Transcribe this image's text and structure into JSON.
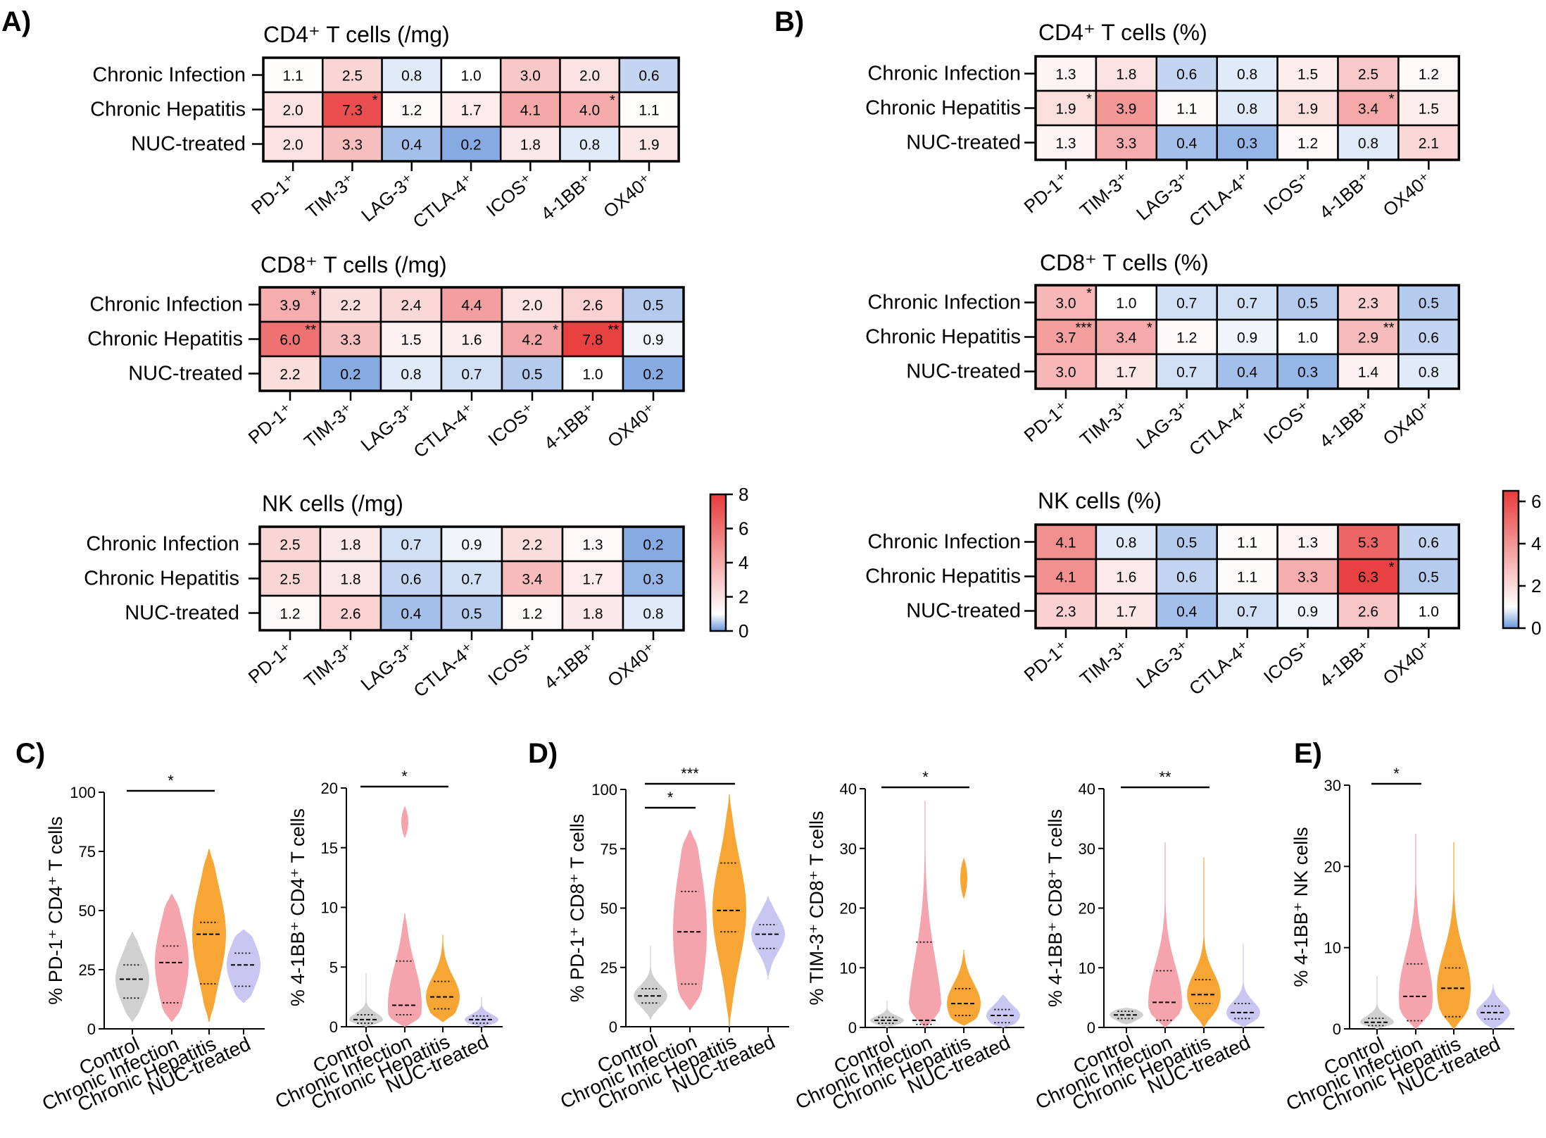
{
  "panel_letters": [
    "A)",
    "B)",
    "C)",
    "D)",
    "E)"
  ],
  "chart_data": [
    {
      "type": "heatmap",
      "panel": "A",
      "title": "CD4⁺ T cells (/mg)",
      "rows": [
        "Chronic Infection",
        "Chronic Hepatitis",
        "NUC-treated"
      ],
      "columns": [
        "PD-1⁺",
        "TIM-3⁺",
        "LAG-3⁺",
        "CTLA-4⁺",
        "ICOS⁺",
        "4-1BB⁺",
        "OX40⁺"
      ],
      "values": [
        [
          1.1,
          2.5,
          0.8,
          1.0,
          3.0,
          2.0,
          0.6
        ],
        [
          2.0,
          7.3,
          1.2,
          1.7,
          4.1,
          4.0,
          1.1
        ],
        [
          2.0,
          3.3,
          0.4,
          0.2,
          1.8,
          0.8,
          1.9
        ]
      ],
      "significance": [
        [
          "",
          "",
          "",
          "",
          "",
          "",
          ""
        ],
        [
          "",
          "*",
          "",
          "",
          "",
          "*",
          ""
        ],
        [
          "",
          "",
          "",
          "",
          "",
          "",
          ""
        ]
      ],
      "color_range": [
        0,
        8
      ]
    },
    {
      "type": "heatmap",
      "panel": "A",
      "title": "CD8⁺ T cells (/mg)",
      "rows": [
        "Chronic Infection",
        "Chronic Hepatitis",
        "NUC-treated"
      ],
      "columns": [
        "PD-1⁺",
        "TIM-3⁺",
        "LAG-3⁺",
        "CTLA-4⁺",
        "ICOS⁺",
        "4-1BB⁺",
        "OX40⁺"
      ],
      "values": [
        [
          3.9,
          2.2,
          2.4,
          4.4,
          2.0,
          2.6,
          0.5
        ],
        [
          6.0,
          3.3,
          1.5,
          1.6,
          4.2,
          7.8,
          0.9
        ],
        [
          2.2,
          0.2,
          0.8,
          0.7,
          0.5,
          1.0,
          0.2
        ]
      ],
      "significance": [
        [
          "*",
          "",
          "",
          "",
          "",
          "",
          ""
        ],
        [
          "**",
          "",
          "",
          "",
          "*",
          "**",
          ""
        ],
        [
          "",
          "",
          "",
          "",
          "",
          "",
          ""
        ]
      ],
      "color_range": [
        0,
        8
      ]
    },
    {
      "type": "heatmap",
      "panel": "A",
      "title": "NK cells (/mg)",
      "rows": [
        "Chronic Infection",
        "Chronic Hepatitis",
        "NUC-treated"
      ],
      "columns": [
        "PD-1⁺",
        "TIM-3⁺",
        "LAG-3⁺",
        "CTLA-4⁺",
        "ICOS⁺",
        "4-1BB⁺",
        "OX40⁺"
      ],
      "values": [
        [
          2.5,
          1.8,
          0.7,
          0.9,
          2.2,
          1.3,
          0.2
        ],
        [
          2.5,
          1.8,
          0.6,
          0.7,
          3.4,
          1.7,
          0.3
        ],
        [
          1.2,
          2.6,
          0.4,
          0.5,
          1.2,
          1.8,
          0.8
        ]
      ],
      "significance": [
        [
          "",
          "",
          "",
          "",
          "",
          "",
          ""
        ],
        [
          "",
          "",
          "",
          "",
          "",
          "",
          ""
        ],
        [
          "",
          "",
          "",
          "",
          "",
          "",
          ""
        ]
      ],
      "color_range": [
        0,
        8
      ],
      "colorbar_ticks": [
        "8",
        "6",
        "4",
        "2",
        "0"
      ]
    },
    {
      "type": "heatmap",
      "panel": "B",
      "title": "CD4⁺ T cells (%)",
      "rows": [
        "Chronic Infection",
        "Chronic Hepatitis",
        "NUC-treated"
      ],
      "columns": [
        "PD-1⁺",
        "TIM-3⁺",
        "LAG-3⁺",
        "CTLA-4⁺",
        "ICOS⁺",
        "4-1BB⁺",
        "OX40⁺"
      ],
      "values": [
        [
          1.3,
          1.8,
          0.6,
          0.8,
          1.5,
          2.5,
          1.2
        ],
        [
          1.9,
          3.9,
          1.1,
          0.8,
          1.9,
          3.4,
          1.5
        ],
        [
          1.3,
          3.3,
          0.4,
          0.3,
          1.2,
          0.8,
          2.1
        ]
      ],
      "significance": [
        [
          "",
          "",
          "",
          "",
          "",
          "",
          ""
        ],
        [
          "*",
          "",
          "",
          "",
          "",
          "*",
          ""
        ],
        [
          "",
          "",
          "",
          "",
          "",
          "",
          ""
        ]
      ],
      "color_range": [
        0,
        6.5
      ]
    },
    {
      "type": "heatmap",
      "panel": "B",
      "title": "CD8⁺ T cells (%)",
      "rows": [
        "Chronic Infection",
        "Chronic Hepatitis",
        "NUC-treated"
      ],
      "columns": [
        "PD-1⁺",
        "TIM-3⁺",
        "LAG-3⁺",
        "CTLA-4⁺",
        "ICOS⁺",
        "4-1BB⁺",
        "OX40⁺"
      ],
      "values": [
        [
          3.0,
          1.0,
          0.7,
          0.7,
          0.5,
          2.3,
          0.5
        ],
        [
          3.7,
          3.4,
          1.2,
          0.9,
          1.0,
          2.9,
          0.6
        ],
        [
          3.0,
          1.7,
          0.7,
          0.4,
          0.3,
          1.4,
          0.8
        ]
      ],
      "significance": [
        [
          "*",
          "",
          "",
          "",
          "",
          "",
          ""
        ],
        [
          "***",
          "*",
          "",
          "",
          "",
          "**",
          ""
        ],
        [
          "",
          "",
          "",
          "",
          "",
          "",
          ""
        ]
      ],
      "color_range": [
        0,
        6.5
      ]
    },
    {
      "type": "heatmap",
      "panel": "B",
      "title": "NK cells (%)",
      "rows": [
        "Chronic Infection",
        "Chronic Hepatitis",
        "NUC-treated"
      ],
      "columns": [
        "PD-1⁺",
        "TIM-3⁺",
        "LAG-3⁺",
        "CTLA-4⁺",
        "ICOS⁺",
        "4-1BB⁺",
        "OX40⁺"
      ],
      "values": [
        [
          4.1,
          0.8,
          0.5,
          1.1,
          1.3,
          5.3,
          0.6
        ],
        [
          4.1,
          1.6,
          0.6,
          1.1,
          3.3,
          6.3,
          0.5
        ],
        [
          2.3,
          1.7,
          0.4,
          0.7,
          0.9,
          2.6,
          1.0
        ]
      ],
      "significance": [
        [
          "",
          "",
          "",
          "",
          "",
          "",
          ""
        ],
        [
          "",
          "",
          "",
          "",
          "",
          "*",
          ""
        ],
        [
          "",
          "",
          "",
          "",
          "",
          "",
          ""
        ]
      ],
      "color_range": [
        0,
        6.5
      ],
      "colorbar_ticks": [
        "6",
        "4",
        "2",
        "0"
      ]
    },
    {
      "type": "violin",
      "panel": "C",
      "ylabel": "% PD-1⁺ CD4⁺ T cells",
      "categories": [
        "Control",
        "Chronic Infection",
        "Chronic Hepatitis",
        "NUC-treated"
      ],
      "ylim": [
        0,
        100
      ],
      "yticks": [
        "0",
        "25",
        "50",
        "75",
        "100"
      ],
      "groups": [
        {
          "median": 21,
          "q1": 13,
          "q3": 27,
          "min": 3,
          "max": 41
        },
        {
          "median": 28,
          "q1": 11,
          "q3": 35,
          "min": 3,
          "max": 57
        },
        {
          "median": 40,
          "q1": 19,
          "q3": 45,
          "min": 3,
          "max": 76
        },
        {
          "median": 27,
          "q1": 18,
          "q3": 32,
          "min": 11,
          "max": 42
        }
      ],
      "significance": [
        {
          "from": 0,
          "to": 2,
          "label": "*"
        }
      ]
    },
    {
      "type": "violin",
      "panel": "C",
      "ylabel": "% 4-1BB⁺ CD4⁺ T cells",
      "categories": [
        "Control",
        "Chronic Infection",
        "Chronic Hepatitis",
        "NUC-treated"
      ],
      "ylim": [
        0,
        20
      ],
      "yticks": [
        "0",
        "5",
        "10",
        "15",
        "20"
      ],
      "groups": [
        {
          "median": 0.6,
          "q1": 0.3,
          "q3": 1.0,
          "min": 0,
          "max": 4.5
        },
        {
          "median": 1.8,
          "q1": 1.0,
          "q3": 5.5,
          "min": 0,
          "max": 9.5,
          "outlier_lobe": [
            15.8,
            18.5
          ]
        },
        {
          "median": 2.5,
          "q1": 1.5,
          "q3": 3.8,
          "min": 0.4,
          "max": 7.7
        },
        {
          "median": 0.6,
          "q1": 0.3,
          "q3": 0.9,
          "min": 0,
          "max": 2.5
        }
      ],
      "significance": [
        {
          "from": 0,
          "to": 2,
          "label": "*"
        }
      ]
    },
    {
      "type": "violin",
      "panel": "D",
      "ylabel": "% PD-1⁺ CD8⁺ T cells",
      "categories": [
        "Control",
        "Chronic Infection",
        "Chronic Hepatitis",
        "NUC-treated"
      ],
      "ylim": [
        0,
        100
      ],
      "yticks": [
        "0",
        "25",
        "50",
        "75",
        "100"
      ],
      "groups": [
        {
          "median": 13,
          "q1": 10,
          "q3": 16,
          "min": 3,
          "max": 34
        },
        {
          "median": 40,
          "q1": 18,
          "q3": 57,
          "min": 7,
          "max": 83
        },
        {
          "median": 49,
          "q1": 40,
          "q3": 69,
          "min": 0,
          "max": 98
        },
        {
          "median": 39,
          "q1": 33,
          "q3": 43,
          "min": 20,
          "max": 55
        }
      ],
      "significance": [
        {
          "from": 0,
          "to": 1,
          "label": "*"
        },
        {
          "from": 0,
          "to": 2,
          "label": "***"
        }
      ]
    },
    {
      "type": "violin",
      "panel": "D",
      "ylabel": "% TIM-3⁺ CD8⁺ T cells",
      "categories": [
        "Control",
        "Chronic Infection",
        "Chronic Hepatitis",
        "NUC-treated"
      ],
      "ylim": [
        0,
        40
      ],
      "yticks": [
        "0",
        "10",
        "20",
        "30",
        "40"
      ],
      "groups": [
        {
          "median": 1.2,
          "q1": 0.7,
          "q3": 1.7,
          "min": 0,
          "max": 4.5
        },
        {
          "median": 1.2,
          "q1": 0.5,
          "q3": 14.3,
          "min": 0,
          "max": 38
        },
        {
          "median": 4,
          "q1": 2,
          "q3": 6.5,
          "min": 0.3,
          "max": 13,
          "outlier_lobe": [
            21.5,
            28.5
          ]
        },
        {
          "median": 2,
          "q1": 0.8,
          "q3": 3,
          "min": 0,
          "max": 5.5
        }
      ],
      "significance": [
        {
          "from": 0,
          "to": 2,
          "label": "*"
        }
      ]
    },
    {
      "type": "violin",
      "panel": "D",
      "ylabel": "% 4-1BB⁺ CD8⁺ T cells",
      "categories": [
        "Control",
        "Chronic Infection",
        "Chronic Hepatitis",
        "NUC-treated"
      ],
      "ylim": [
        0,
        40
      ],
      "yticks": [
        "0",
        "10",
        "20",
        "30",
        "40"
      ],
      "groups": [
        {
          "median": 2.1,
          "q1": 1.5,
          "q3": 2.7,
          "min": 0.5,
          "max": 3.3
        },
        {
          "median": 4.2,
          "q1": 1.2,
          "q3": 9.5,
          "min": 0,
          "max": 31
        },
        {
          "median": 5.5,
          "q1": 4,
          "q3": 8,
          "min": 0,
          "max": 28.5
        },
        {
          "median": 2.5,
          "q1": 1.5,
          "q3": 4,
          "min": 0,
          "max": 14
        }
      ],
      "significance": [
        {
          "from": 0,
          "to": 2,
          "label": "**"
        }
      ]
    },
    {
      "type": "violin",
      "panel": "E",
      "ylabel": "% 4-1BB⁺ NK cells",
      "categories": [
        "Control",
        "Chronic Infection",
        "Chronic Hepatitis",
        "NUC-treated"
      ],
      "ylim": [
        0,
        30
      ],
      "yticks": [
        "0",
        "10",
        "20",
        "30"
      ],
      "groups": [
        {
          "median": 0.8,
          "q1": 0.4,
          "q3": 1.3,
          "min": 0,
          "max": 6.5
        },
        {
          "median": 4,
          "q1": 1,
          "q3": 8,
          "min": 0,
          "max": 24
        },
        {
          "median": 5,
          "q1": 1.5,
          "q3": 7.5,
          "min": 0,
          "max": 23
        },
        {
          "median": 2,
          "q1": 1.2,
          "q3": 2.8,
          "min": 0,
          "max": 5.5
        }
      ],
      "significance": [
        {
          "from": 0,
          "to": 1,
          "label": "*"
        }
      ]
    }
  ]
}
